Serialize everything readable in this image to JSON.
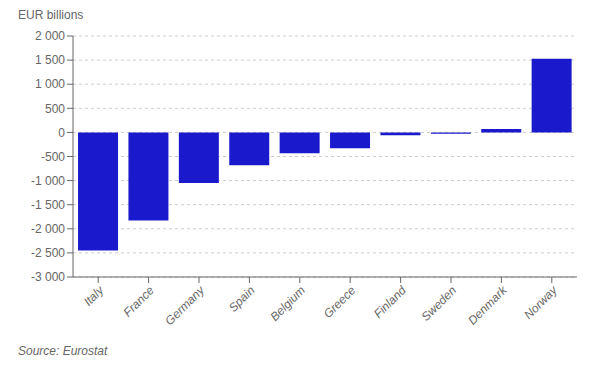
{
  "chart_data": {
    "type": "bar",
    "ylabel": "EUR billions",
    "annotations": [
      "Source: Eurostat"
    ],
    "categories": [
      "Italy",
      "France",
      "Germany",
      "Spain",
      "Belgium",
      "Greece",
      "Finland",
      "Sweden",
      "Denmark",
      "Norway"
    ],
    "values": [
      -2450,
      -1830,
      -1050,
      -680,
      -430,
      -330,
      -60,
      -30,
      70,
      1530
    ],
    "color": "#1a1acc",
    "ylim": [
      -3000,
      2000
    ],
    "yticks": [
      {
        "value": -3000,
        "label": "-3 000"
      },
      {
        "value": -2500,
        "label": "-2 500"
      },
      {
        "value": -2000,
        "label": "-2 000"
      },
      {
        "value": -1500,
        "label": "-1 500"
      },
      {
        "value": -1000,
        "label": "-1 000"
      },
      -500,
      0,
      500,
      {
        "value": 1000,
        "label": "1 000"
      },
      {
        "value": 1500,
        "label": "1 500"
      },
      {
        "value": 2000,
        "label": "2 000"
      }
    ],
    "grid": true
  }
}
